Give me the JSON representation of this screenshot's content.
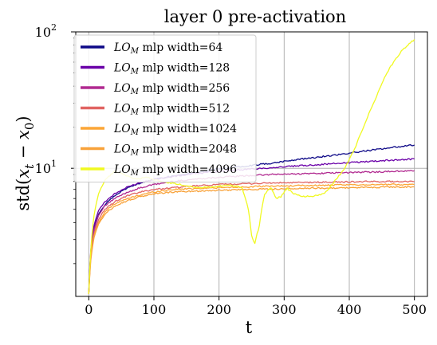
{
  "chart_data": {
    "type": "line",
    "title": "layer 0 pre-activation",
    "xlabel": "t",
    "ylabel": "std(x_t − x_0)",
    "yscale": "log",
    "xlim": [
      -20,
      520
    ],
    "ylim": [
      1.15,
      100
    ],
    "x_ticks": [
      0,
      100,
      200,
      300,
      400,
      500
    ],
    "y_ticks": [
      {
        "value": 10,
        "label": "10",
        "exp": "1"
      },
      {
        "value": 100,
        "label": "10",
        "exp": "2"
      }
    ],
    "grid": true,
    "legend_position": "top-left",
    "series": [
      {
        "name": "LO_M mlp width=64",
        "legend_prefix": "LO",
        "legend_sub": "M",
        "legend_rest": " mlp width=64",
        "color": "#0d0887",
        "points": [
          [
            0,
            1.2
          ],
          [
            3,
            2.4
          ],
          [
            8,
            3.6
          ],
          [
            15,
            4.6
          ],
          [
            25,
            5.4
          ],
          [
            40,
            6.3
          ],
          [
            60,
            7.2
          ],
          [
            80,
            7.8
          ],
          [
            100,
            8.3
          ],
          [
            130,
            8.8
          ],
          [
            160,
            9.3
          ],
          [
            200,
            9.9
          ],
          [
            240,
            10.4
          ],
          [
            280,
            10.9
          ],
          [
            320,
            11.6
          ],
          [
            360,
            12.2
          ],
          [
            400,
            12.9
          ],
          [
            440,
            13.7
          ],
          [
            470,
            14.3
          ],
          [
            500,
            14.8
          ]
        ]
      },
      {
        "name": "LO_M mlp width=128",
        "legend_prefix": "LO",
        "legend_sub": "M",
        "legend_rest": " mlp width=128",
        "color": "#6a00a8",
        "points": [
          [
            0,
            1.2
          ],
          [
            3,
            2.5
          ],
          [
            8,
            3.8
          ],
          [
            15,
            4.9
          ],
          [
            25,
            5.7
          ],
          [
            40,
            6.5
          ],
          [
            60,
            7.3
          ],
          [
            80,
            7.9
          ],
          [
            100,
            8.3
          ],
          [
            130,
            8.7
          ],
          [
            160,
            9.1
          ],
          [
            200,
            9.5
          ],
          [
            240,
            9.8
          ],
          [
            280,
            10.1
          ],
          [
            320,
            10.4
          ],
          [
            360,
            10.7
          ],
          [
            400,
            11.0
          ],
          [
            440,
            11.3
          ],
          [
            470,
            11.5
          ],
          [
            500,
            11.7
          ]
        ]
      },
      {
        "name": "LO_M mlp width=256",
        "legend_prefix": "LO",
        "legend_sub": "M",
        "legend_rest": " mlp width=256",
        "color": "#b12a90",
        "points": [
          [
            0,
            1.2
          ],
          [
            3,
            2.4
          ],
          [
            8,
            3.5
          ],
          [
            15,
            4.5
          ],
          [
            25,
            5.3
          ],
          [
            40,
            6.0
          ],
          [
            60,
            6.7
          ],
          [
            80,
            7.2
          ],
          [
            100,
            7.6
          ],
          [
            130,
            8.0
          ],
          [
            160,
            8.3
          ],
          [
            200,
            8.6
          ],
          [
            240,
            8.8
          ],
          [
            280,
            9.0
          ],
          [
            320,
            9.1
          ],
          [
            360,
            9.2
          ],
          [
            400,
            9.3
          ],
          [
            440,
            9.4
          ],
          [
            470,
            9.5
          ],
          [
            500,
            9.6
          ]
        ]
      },
      {
        "name": "LO_M mlp width=512",
        "legend_prefix": "LO",
        "legend_sub": "M",
        "legend_rest": " mlp width=512",
        "color": "#e16462",
        "points": [
          [
            0,
            1.2
          ],
          [
            3,
            2.3
          ],
          [
            8,
            3.3
          ],
          [
            15,
            4.2
          ],
          [
            25,
            5.0
          ],
          [
            40,
            5.7
          ],
          [
            60,
            6.3
          ],
          [
            80,
            6.7
          ],
          [
            100,
            7.0
          ],
          [
            130,
            7.2
          ],
          [
            160,
            7.4
          ],
          [
            200,
            7.6
          ],
          [
            240,
            7.7
          ],
          [
            280,
            7.8
          ],
          [
            320,
            7.85
          ],
          [
            360,
            7.9
          ],
          [
            400,
            7.95
          ],
          [
            440,
            8.0
          ],
          [
            470,
            8.0
          ],
          [
            500,
            8.0
          ]
        ]
      },
      {
        "name": "LO_M mlp width=1024",
        "legend_prefix": "LO",
        "legend_sub": "M",
        "legend_rest": " mlp width=1024",
        "color": "#fca636",
        "points": [
          [
            0,
            1.2
          ],
          [
            3,
            2.2
          ],
          [
            8,
            3.2
          ],
          [
            15,
            4.0
          ],
          [
            25,
            4.8
          ],
          [
            40,
            5.5
          ],
          [
            60,
            6.0
          ],
          [
            80,
            6.4
          ],
          [
            100,
            6.7
          ],
          [
            130,
            7.0
          ],
          [
            160,
            7.1
          ],
          [
            200,
            7.2
          ],
          [
            240,
            7.3
          ],
          [
            280,
            7.4
          ],
          [
            320,
            7.45
          ],
          [
            360,
            7.5
          ],
          [
            400,
            7.55
          ],
          [
            440,
            7.6
          ],
          [
            470,
            7.6
          ],
          [
            500,
            7.6
          ]
        ]
      },
      {
        "name": "LO_M mlp width=2048",
        "legend_prefix": "LO",
        "legend_sub": "M",
        "legend_rest": " mlp width=2048",
        "color": "#f8a23a",
        "points": [
          [
            0,
            1.2
          ],
          [
            3,
            2.1
          ],
          [
            8,
            3.1
          ],
          [
            15,
            3.9
          ],
          [
            25,
            4.6
          ],
          [
            40,
            5.3
          ],
          [
            60,
            5.8
          ],
          [
            80,
            6.2
          ],
          [
            100,
            6.5
          ],
          [
            130,
            6.7
          ],
          [
            160,
            6.8
          ],
          [
            200,
            6.9
          ],
          [
            240,
            7.0
          ],
          [
            280,
            7.05
          ],
          [
            320,
            7.1
          ],
          [
            360,
            7.15
          ],
          [
            400,
            7.2
          ],
          [
            440,
            7.25
          ],
          [
            470,
            7.3
          ],
          [
            500,
            7.3
          ]
        ]
      },
      {
        "name": "LO_M mlp width=4096",
        "legend_prefix": "LO",
        "legend_sub": "M",
        "legend_rest": " mlp width=4096",
        "color": "#f0f921",
        "points": [
          [
            0,
            1.2
          ],
          [
            3,
            2.5
          ],
          [
            8,
            4.5
          ],
          [
            15,
            6.5
          ],
          [
            25,
            8.2
          ],
          [
            40,
            9.5
          ],
          [
            55,
            9.0
          ],
          [
            70,
            8.3
          ],
          [
            90,
            8.6
          ],
          [
            110,
            8.0
          ],
          [
            140,
            7.6
          ],
          [
            170,
            7.2
          ],
          [
            200,
            7.4
          ],
          [
            220,
            7.5
          ],
          [
            235,
            7.2
          ],
          [
            245,
            5.0
          ],
          [
            250,
            3.2
          ],
          [
            255,
            2.8
          ],
          [
            262,
            3.8
          ],
          [
            270,
            6.5
          ],
          [
            280,
            7.2
          ],
          [
            288,
            6.0
          ],
          [
            295,
            6.2
          ],
          [
            305,
            7.1
          ],
          [
            315,
            6.5
          ],
          [
            330,
            6.2
          ],
          [
            350,
            6.3
          ],
          [
            360,
            6.5
          ],
          [
            370,
            7.2
          ],
          [
            380,
            8.3
          ],
          [
            390,
            9.5
          ],
          [
            400,
            11.5
          ],
          [
            410,
            14.5
          ],
          [
            420,
            19.0
          ],
          [
            430,
            25.0
          ],
          [
            440,
            32.0
          ],
          [
            450,
            42.0
          ],
          [
            460,
            52.0
          ],
          [
            470,
            62.0
          ],
          [
            480,
            72.0
          ],
          [
            490,
            80.0
          ],
          [
            500,
            88.0
          ]
        ]
      }
    ]
  }
}
